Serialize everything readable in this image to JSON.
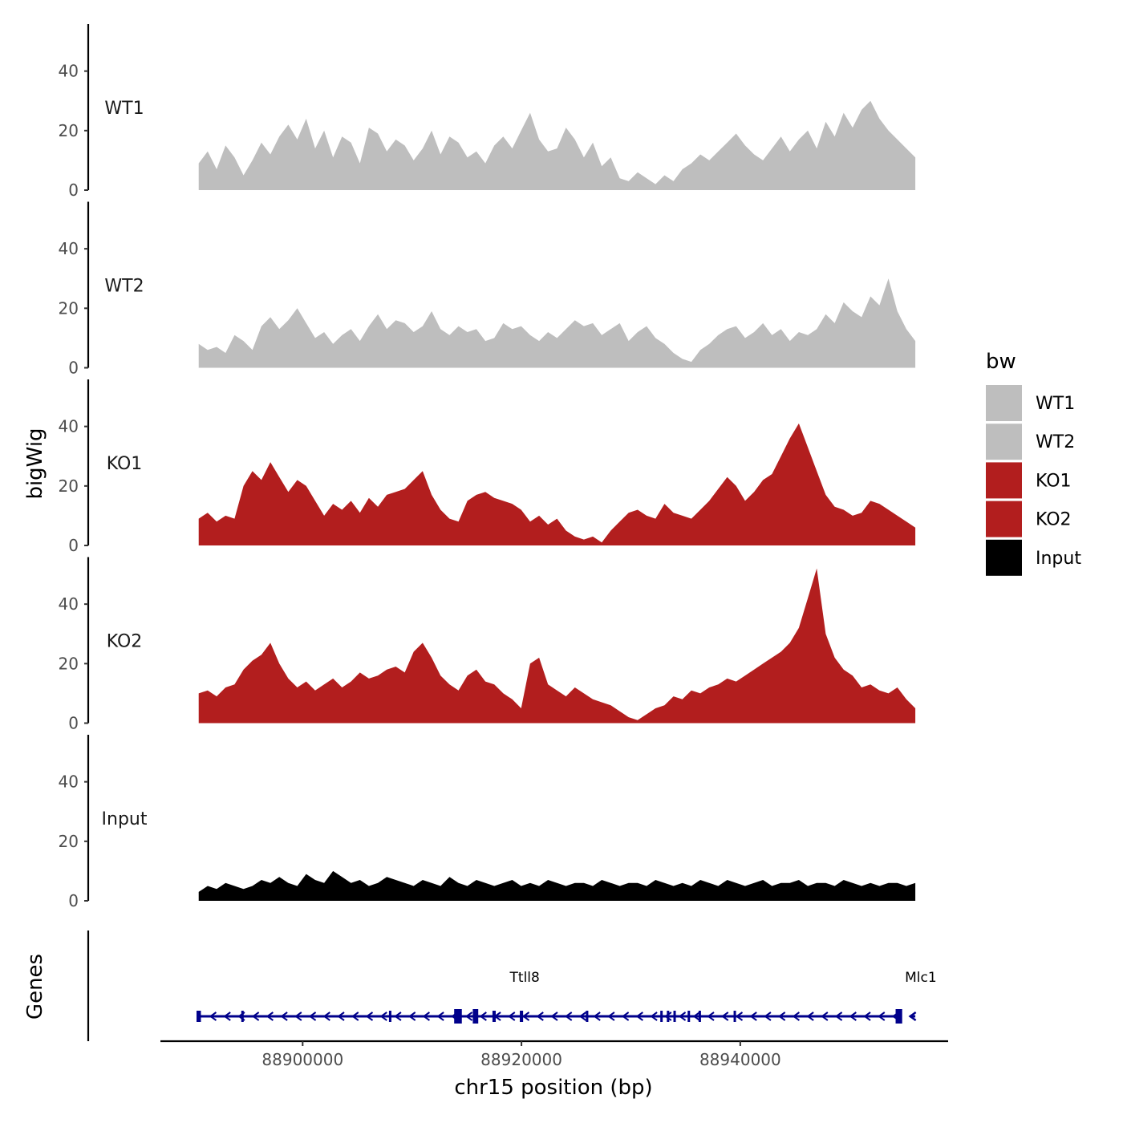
{
  "chart_data": {
    "type": "area",
    "ylabel": "bigWig",
    "xlabel": "chr15 position (bp)",
    "ylim": [
      0,
      55
    ],
    "yticks": [
      0,
      20,
      40
    ],
    "xlim": [
      88887000,
      88959000
    ],
    "data_range": [
      88890500,
      88956000
    ],
    "xticks": [
      88900000,
      88920000,
      88940000
    ],
    "xtick_labels": [
      "88900000",
      "88920000",
      "88940000"
    ],
    "legend": {
      "title": "bw",
      "placement": "right",
      "entries": [
        {
          "label": "WT1",
          "color": "#bebebe"
        },
        {
          "label": "WT2",
          "color": "#bebebe"
        },
        {
          "label": "KO1",
          "color": "#b21e1e"
        },
        {
          "label": "KO2",
          "color": "#b21e1e"
        },
        {
          "label": "Input",
          "color": "#000000"
        }
      ]
    },
    "series": [
      {
        "name": "WT1",
        "color": "#bebebe",
        "values": [
          9,
          13,
          7,
          15,
          11,
          5,
          10,
          16,
          12,
          18,
          22,
          17,
          24,
          14,
          20,
          11,
          18,
          16,
          9,
          21,
          19,
          13,
          17,
          15,
          10,
          14,
          20,
          12,
          18,
          16,
          11,
          13,
          9,
          15,
          18,
          14,
          20,
          26,
          17,
          13,
          14,
          21,
          17,
          11,
          16,
          8,
          11,
          4,
          3,
          6,
          4,
          2,
          5,
          3,
          7,
          9,
          12,
          10,
          13,
          16,
          19,
          15,
          12,
          10,
          14,
          18,
          13,
          17,
          20,
          14,
          23,
          18,
          26,
          21,
          27,
          30,
          24,
          20,
          17,
          14,
          11
        ]
      },
      {
        "name": "WT2",
        "color": "#bebebe",
        "values": [
          8,
          6,
          7,
          5,
          11,
          9,
          6,
          14,
          17,
          13,
          16,
          20,
          15,
          10,
          12,
          8,
          11,
          13,
          9,
          14,
          18,
          13,
          16,
          15,
          12,
          14,
          19,
          13,
          11,
          14,
          12,
          13,
          9,
          10,
          15,
          13,
          14,
          11,
          9,
          12,
          10,
          13,
          16,
          14,
          15,
          11,
          13,
          15,
          9,
          12,
          14,
          10,
          8,
          5,
          3,
          2,
          6,
          8,
          11,
          13,
          14,
          10,
          12,
          15,
          11,
          13,
          9,
          12,
          11,
          13,
          18,
          15,
          22,
          19,
          17,
          24,
          21,
          30,
          19,
          13,
          9
        ]
      },
      {
        "name": "KO1",
        "color": "#b21e1e",
        "values": [
          9,
          11,
          8,
          10,
          9,
          20,
          25,
          22,
          28,
          23,
          18,
          22,
          20,
          15,
          10,
          14,
          12,
          15,
          11,
          16,
          13,
          17,
          18,
          19,
          22,
          25,
          17,
          12,
          9,
          8,
          15,
          17,
          18,
          16,
          15,
          14,
          12,
          8,
          10,
          7,
          9,
          5,
          3,
          2,
          3,
          1,
          5,
          8,
          11,
          12,
          10,
          9,
          14,
          11,
          10,
          9,
          12,
          15,
          19,
          23,
          20,
          15,
          18,
          22,
          24,
          30,
          36,
          41,
          33,
          25,
          17,
          13,
          12,
          10,
          11,
          15,
          14,
          12,
          10,
          8,
          6
        ]
      },
      {
        "name": "KO2",
        "color": "#b21e1e",
        "values": [
          10,
          11,
          9,
          12,
          13,
          18,
          21,
          23,
          27,
          20,
          15,
          12,
          14,
          11,
          13,
          15,
          12,
          14,
          17,
          15,
          16,
          18,
          19,
          17,
          24,
          27,
          22,
          16,
          13,
          11,
          16,
          18,
          14,
          13,
          10,
          8,
          5,
          20,
          22,
          13,
          11,
          9,
          12,
          10,
          8,
          7,
          6,
          4,
          2,
          1,
          3,
          5,
          6,
          9,
          8,
          11,
          10,
          12,
          13,
          15,
          14,
          16,
          18,
          20,
          22,
          24,
          27,
          32,
          42,
          52,
          30,
          22,
          18,
          16,
          12,
          13,
          11,
          10,
          12,
          8,
          5
        ]
      },
      {
        "name": "Input",
        "color": "#000000",
        "values": [
          3,
          5,
          4,
          6,
          5,
          4,
          5,
          7,
          6,
          8,
          6,
          5,
          9,
          7,
          6,
          10,
          8,
          6,
          7,
          5,
          6,
          8,
          7,
          6,
          5,
          7,
          6,
          5,
          8,
          6,
          5,
          7,
          6,
          5,
          6,
          7,
          5,
          6,
          5,
          7,
          6,
          5,
          6,
          6,
          5,
          7,
          6,
          5,
          6,
          6,
          5,
          7,
          6,
          5,
          6,
          5,
          7,
          6,
          5,
          7,
          6,
          5,
          6,
          7,
          5,
          6,
          6,
          7,
          5,
          6,
          6,
          5,
          7,
          6,
          5,
          6,
          5,
          6,
          6,
          5,
          6
        ]
      }
    ]
  },
  "genes": {
    "panel_label": "Genes",
    "items": [
      {
        "name": "Ttll8",
        "label_pos": 88920300,
        "start": 88890500,
        "end": 88954500
      },
      {
        "name": "Mlc1",
        "label_pos": 88956500,
        "start": 88955500,
        "end": 88956000
      }
    ],
    "exons": [
      88890500,
      88894500,
      88908000,
      88914200,
      88915800,
      88917500,
      88920000,
      88926000,
      88932800,
      88933400,
      88934000,
      88935300,
      88936300,
      88939500,
      88954500
    ],
    "exon_widths": [
      400,
      200,
      150,
      700,
      500,
      300,
      300,
      150,
      200,
      150,
      150,
      150,
      150,
      150,
      600
    ],
    "arrows_step": 1300,
    "color": "#00008b"
  }
}
